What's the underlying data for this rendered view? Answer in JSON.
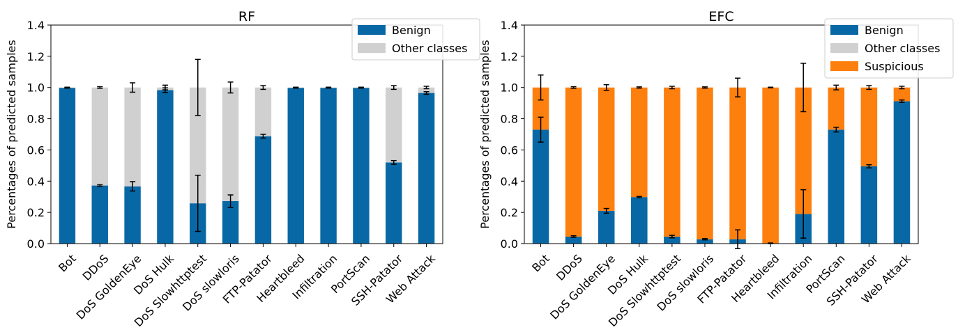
{
  "colors": {
    "benign": "#0868a5",
    "other": "#d0d0d0",
    "suspicious": "#fd7f0e",
    "error_bar": "#000000",
    "axis": "#000000"
  },
  "chart_data": [
    {
      "type": "bar",
      "stacked": true,
      "title": "RF",
      "xlabel": "",
      "ylabel": "Percentages of predicted samples",
      "ylim": [
        0,
        1.4
      ],
      "yticks": [
        "0.0",
        "0.2",
        "0.4",
        "0.6",
        "0.8",
        "1.0",
        "1.2",
        "1.4"
      ],
      "legend_position": "top-right",
      "categories": [
        "Bot",
        "DDoS",
        "DoS GoldenEye",
        "DoS Hulk",
        "DoS Slowhttptest",
        "DoS slowloris",
        "FTP-Patator",
        "Heartbleed",
        "Infiltration",
        "PortScan",
        "SSH-Patator",
        "Web Attack"
      ],
      "series": [
        {
          "name": "Benign",
          "color_key": "benign",
          "values": [
            0.998,
            0.372,
            0.367,
            0.983,
            0.258,
            0.272,
            0.688,
            0.998,
            0.998,
            0.998,
            0.52,
            0.965
          ],
          "error": [
            0.002,
            0.005,
            0.03,
            0.015,
            0.18,
            0.04,
            0.012,
            0.002,
            0.002,
            0.002,
            0.012,
            0.008
          ]
        },
        {
          "name": "Other classes",
          "color_key": "other",
          "values": [
            0.002,
            0.628,
            0.633,
            0.017,
            0.742,
            0.728,
            0.312,
            0.002,
            0.002,
            0.002,
            0.48,
            0.035
          ],
          "error": [
            0.002,
            0.005,
            0.03,
            0.015,
            0.18,
            0.035,
            0.012,
            0.002,
            0.002,
            0.002,
            0.012,
            0.008
          ]
        }
      ]
    },
    {
      "type": "bar",
      "stacked": true,
      "title": "EFC",
      "xlabel": "",
      "ylabel": "Percentages of predicted samples",
      "ylim": [
        0,
        1.4
      ],
      "yticks": [
        "0.0",
        "0.2",
        "0.4",
        "0.6",
        "0.8",
        "1.0",
        "1.2",
        "1.4"
      ],
      "legend_position": "top-right",
      "categories": [
        "Bot",
        "DDoS",
        "DoS GoldenEye",
        "DoS Hulk",
        "DoS Slowhttptest",
        "DoS slowloris",
        "FTP-Patator",
        "Heartbleed",
        "Infiltration",
        "PortScan",
        "SSH-Patator",
        "Web Attack"
      ],
      "series": [
        {
          "name": "Benign",
          "color_key": "benign",
          "values": [
            0.73,
            0.045,
            0.21,
            0.298,
            0.045,
            0.028,
            0.028,
            0.002,
            0.19,
            0.73,
            0.495,
            0.912
          ],
          "error": [
            0.08,
            0.005,
            0.015,
            0.004,
            0.008,
            0.004,
            0.06,
            0.002,
            0.155,
            0.015,
            0.01,
            0.008
          ]
        },
        {
          "name": "Other classes",
          "color_key": "other",
          "values": [
            0,
            0,
            0,
            0,
            0,
            0,
            0,
            0,
            0,
            0,
            0,
            0
          ],
          "error": [
            0,
            0,
            0,
            0,
            0,
            0,
            0,
            0,
            0,
            0,
            0,
            0
          ]
        },
        {
          "name": "Suspicious",
          "color_key": "suspicious",
          "values": [
            0.27,
            0.955,
            0.79,
            0.702,
            0.955,
            0.972,
            0.972,
            0.998,
            0.81,
            0.27,
            0.505,
            0.088
          ],
          "error": [
            0.08,
            0.005,
            0.018,
            0.004,
            0.008,
            0.004,
            0.06,
            0.002,
            0.155,
            0.015,
            0.012,
            0.008
          ]
        }
      ]
    }
  ]
}
